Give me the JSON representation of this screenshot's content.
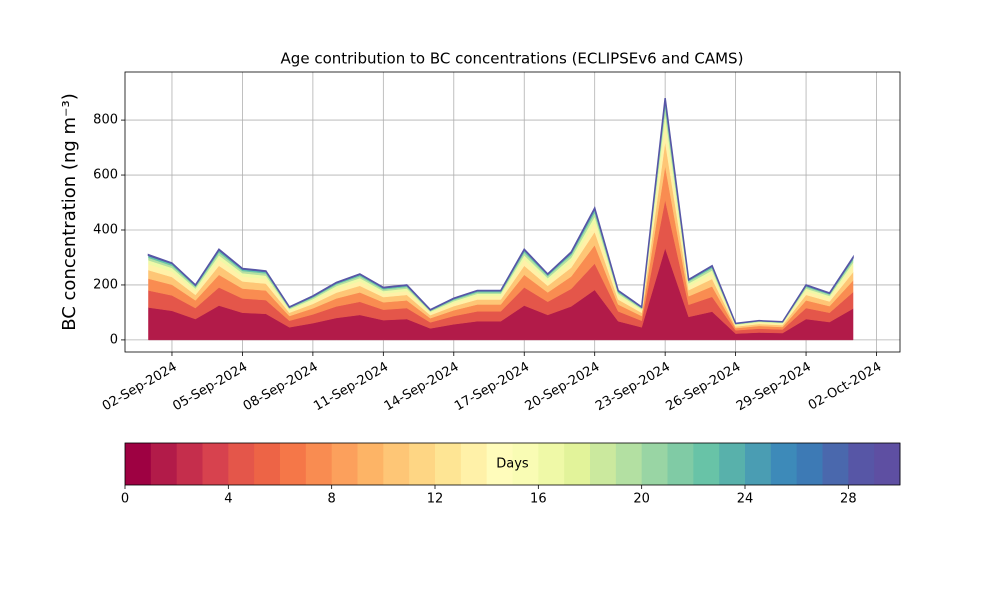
{
  "chart_data": {
    "type": "stacked_area",
    "title": "Age contribution to BC concentrations (ECLIPSEv6 and CAMS)",
    "y_label": "BC concentration (ng m⁻³)",
    "x": [
      "2024-09-01",
      "2024-09-02",
      "2024-09-03",
      "2024-09-04",
      "2024-09-05",
      "2024-09-06",
      "2024-09-07",
      "2024-09-08",
      "2024-09-09",
      "2024-09-10",
      "2024-09-11",
      "2024-09-12",
      "2024-09-13",
      "2024-09-14",
      "2024-09-15",
      "2024-09-16",
      "2024-09-17",
      "2024-09-18",
      "2024-09-19",
      "2024-09-20",
      "2024-09-21",
      "2024-09-22",
      "2024-09-23",
      "2024-09-24",
      "2024-09-25",
      "2024-09-26",
      "2024-09-27",
      "2024-09-28",
      "2024-09-29",
      "2024-09-30",
      "2024-10-01"
    ],
    "series": [
      {
        "color": "#b21b49",
        "values": [
          118,
          106,
          76,
          125,
          99,
          95,
          46,
          61,
          80,
          91,
          72,
          76,
          42,
          57,
          68,
          68,
          125,
          91,
          122,
          182,
          68,
          46,
          334,
          84,
          103,
          23,
          27,
          25,
          76,
          65,
          114
        ]
      },
      {
        "color": "#e4564a",
        "values": [
          62,
          56,
          40,
          66,
          52,
          50,
          24,
          32,
          42,
          48,
          38,
          40,
          22,
          30,
          36,
          36,
          66,
          48,
          64,
          96,
          36,
          24,
          176,
          44,
          54,
          12,
          14,
          13,
          40,
          34,
          60
        ]
      },
      {
        "color": "#f98c51",
        "values": [
          43,
          39,
          28,
          46,
          36,
          35,
          17,
          22,
          29,
          34,
          27,
          28,
          15,
          21,
          25,
          25,
          46,
          34,
          45,
          67,
          25,
          17,
          123,
          31,
          38,
          8,
          10,
          9,
          28,
          24,
          42
        ]
      },
      {
        "color": "#fec676",
        "values": [
          31,
          28,
          20,
          33,
          26,
          25,
          12,
          16,
          21,
          24,
          19,
          20,
          11,
          15,
          18,
          18,
          33,
          24,
          32,
          48,
          18,
          12,
          88,
          22,
          27,
          6,
          7,
          7,
          20,
          17,
          30
        ]
      },
      {
        "color": "#fff1a8",
        "values": [
          22,
          20,
          14,
          23,
          18,
          18,
          8,
          11,
          15,
          17,
          13,
          14,
          8,
          11,
          13,
          13,
          23,
          17,
          22,
          34,
          13,
          8,
          62,
          15,
          19,
          4,
          5,
          5,
          14,
          12,
          21
        ]
      },
      {
        "color": "#eff9a7",
        "values": [
          14,
          13,
          9,
          15,
          12,
          11,
          5,
          7,
          9,
          11,
          9,
          9,
          5,
          7,
          8,
          8,
          15,
          11,
          14,
          22,
          8,
          5,
          40,
          10,
          12,
          3,
          3,
          3,
          9,
          8,
          14
        ]
      },
      {
        "color": "#b3e0a2",
        "values": [
          9,
          8,
          6,
          10,
          8,
          8,
          4,
          5,
          6,
          7,
          6,
          6,
          3,
          5,
          5,
          5,
          10,
          7,
          10,
          14,
          5,
          4,
          26,
          7,
          8,
          2,
          2,
          2,
          6,
          5,
          9
        ]
      },
      {
        "color": "#68c3a7",
        "values": [
          6,
          6,
          4,
          7,
          5,
          5,
          2,
          3,
          4,
          5,
          4,
          4,
          2,
          3,
          4,
          4,
          7,
          5,
          6,
          10,
          4,
          2,
          18,
          4,
          5,
          1,
          1,
          1,
          4,
          3,
          6
        ]
      },
      {
        "color": "#3d8ab9",
        "values": [
          3,
          3,
          2,
          3,
          3,
          3,
          1,
          2,
          2,
          2,
          2,
          2,
          1,
          2,
          2,
          2,
          3,
          2,
          3,
          5,
          2,
          1,
          9,
          2,
          3,
          1,
          1,
          1,
          2,
          2,
          3
        ]
      },
      {
        "color": "#5756a6",
        "values": [
          2,
          1,
          1,
          2,
          1,
          1,
          1,
          1,
          1,
          1,
          1,
          1,
          1,
          1,
          1,
          1,
          2,
          1,
          2,
          2,
          1,
          1,
          4,
          1,
          1,
          0,
          0,
          0,
          1,
          1,
          2
        ]
      }
    ],
    "xlim": [
      "2024-08-31",
      "2024-10-03"
    ],
    "xticks": [
      {
        "value": "2024-09-02",
        "label": "02-Sep-2024"
      },
      {
        "value": "2024-09-05",
        "label": "05-Sep-2024"
      },
      {
        "value": "2024-09-08",
        "label": "08-Sep-2024"
      },
      {
        "value": "2024-09-11",
        "label": "11-Sep-2024"
      },
      {
        "value": "2024-09-14",
        "label": "14-Sep-2024"
      },
      {
        "value": "2024-09-17",
        "label": "17-Sep-2024"
      },
      {
        "value": "2024-09-20",
        "label": "20-Sep-2024"
      },
      {
        "value": "2024-09-23",
        "label": "23-Sep-2024"
      },
      {
        "value": "2024-09-26",
        "label": "26-Sep-2024"
      },
      {
        "value": "2024-09-29",
        "label": "29-Sep-2024"
      },
      {
        "value": "2024-10-02",
        "label": "02-Oct-2024"
      }
    ],
    "ylim": [
      -44,
      975
    ],
    "yticks": [
      0,
      200,
      400,
      600,
      800
    ],
    "grid": true,
    "colorbar": {
      "label": "Days",
      "lim": [
        0,
        30
      ],
      "ticks": [
        0,
        4,
        8,
        12,
        16,
        20,
        24,
        28
      ],
      "colors": [
        "#9e0142",
        "#b21b49",
        "#c52e4c",
        "#d7424e",
        "#e4564a",
        "#ed6446",
        "#f57748",
        "#f98c51",
        "#fca05c",
        "#fdb466",
        "#fec676",
        "#fed684",
        "#fee594",
        "#fff1a8",
        "#fffcbb",
        "#f9fcb4",
        "#eff9a7",
        "#e2f39a",
        "#cbe99e",
        "#b3e0a2",
        "#99d5a4",
        "#80cba5",
        "#68c3a7",
        "#58b1ab",
        "#4a9db3",
        "#3d8ab9",
        "#3d7ab5",
        "#4a68ad",
        "#5756a6",
        "#5e4fa2"
      ]
    }
  }
}
